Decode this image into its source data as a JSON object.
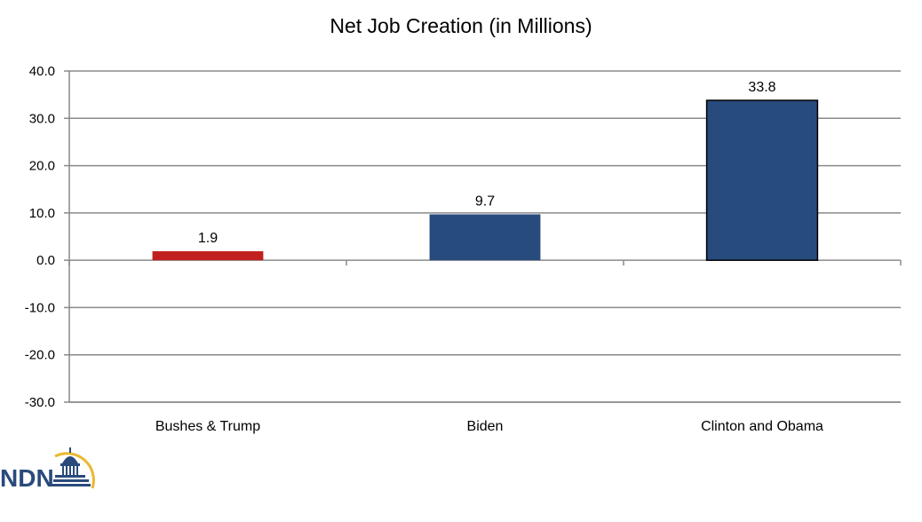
{
  "chart_data": {
    "type": "bar",
    "title": "Net Job Creation (in Millions)",
    "xlabel": "",
    "ylabel": "",
    "categories": [
      "Bushes & Trump",
      "Biden",
      "Clinton and Obama"
    ],
    "values": [
      1.9,
      9.7,
      33.8
    ],
    "data_labels": [
      "1.9",
      "9.7",
      "33.8"
    ],
    "bar_colors": [
      "#c0201f",
      "#284b7e",
      "#284b7e"
    ],
    "ylim": [
      -30,
      40
    ],
    "yticks": [
      40,
      30,
      20,
      10,
      0,
      -10,
      -20,
      -30
    ],
    "ytick_labels": [
      "40.0",
      "30.0",
      "20.0",
      "10.0",
      "0.0",
      "-10.0",
      "-20.0",
      "-30.0"
    ],
    "grid": true,
    "legend": "none"
  },
  "logo": {
    "text": "NDN",
    "icon": "capitol-dome-icon",
    "colors": {
      "text": "#2a4a7c",
      "arc": "#e8b830"
    }
  }
}
